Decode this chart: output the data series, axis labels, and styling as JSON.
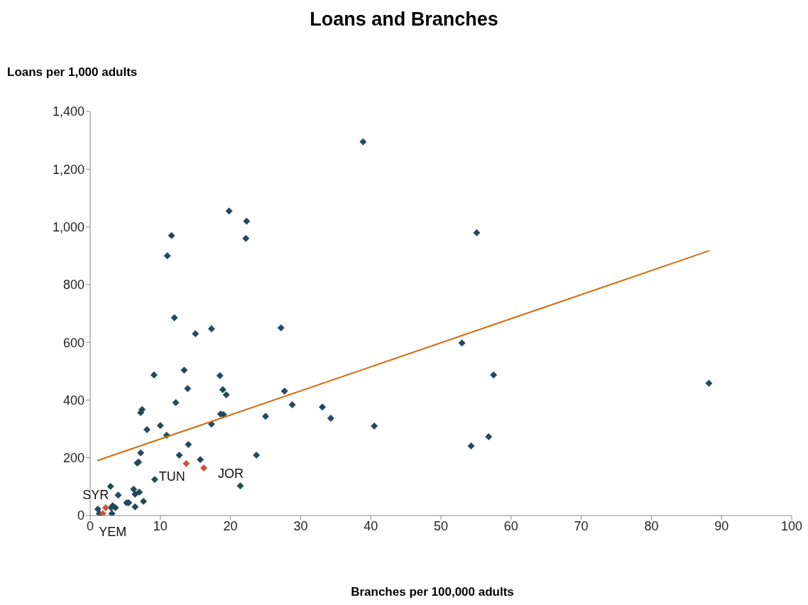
{
  "chart_data": {
    "type": "scatter",
    "title": "Loans and Branches",
    "xlabel": "Branches per 100,000 adults",
    "ylabel": "Loans per 1,000 adults",
    "xlim": [
      0,
      100
    ],
    "xticks": [
      0,
      10,
      20,
      30,
      40,
      50,
      60,
      70,
      80,
      90,
      100
    ],
    "ylim": [
      0,
      1400
    ],
    "yticks": [
      0,
      200,
      400,
      600,
      800,
      {
        "value": 1000,
        "label": "1,000"
      },
      {
        "value": 1200,
        "label": "1,200"
      },
      {
        "value": 1400,
        "label": "1,400"
      }
    ],
    "grid": false,
    "legend": false,
    "marker": "diamond",
    "series": [
      {
        "color": "#234a5a",
        "x": [
          38.9,
          19.8,
          22.3,
          22.2,
          11.6,
          11.0,
          55.1,
          12.0,
          15.0,
          17.3,
          27.2,
          53.0,
          9.1,
          57.5,
          13.4,
          18.5,
          13.9,
          18.9,
          19.4,
          12.2,
          18.6,
          19.0,
          17.3,
          25.0,
          27.7,
          28.8,
          33.1,
          34.3,
          40.5,
          14.0,
          12.7,
          15.7,
          23.7,
          21.4,
          7.4,
          7.2,
          8.1,
          10.0,
          10.9,
          7.2,
          6.7,
          6.9,
          9.2,
          2.9,
          4.0,
          6.2,
          6.4,
          7.0,
          7.6,
          5.2,
          5.5,
          6.4,
          3.2,
          3.6,
          3.0,
          3.1,
          1.1,
          1.3,
          54.3,
          56.8,
          88.2
        ],
        "values": [
          1295,
          1055,
          1020,
          960,
          970,
          900,
          980,
          685,
          630,
          647,
          650,
          598,
          487,
          487,
          504,
          485,
          440,
          436,
          418,
          391,
          352,
          350,
          317,
          344,
          431,
          384,
          376,
          337,
          310,
          246,
          209,
          194,
          209,
          103,
          367,
          357,
          298,
          312,
          278,
          217,
          182,
          185,
          125,
          101,
          71,
          91,
          74,
          81,
          49,
          44,
          44,
          30,
          34,
          27,
          27,
          7,
          22,
          7,
          241,
          273,
          458
        ]
      },
      {
        "color": "#c8553d",
        "x": [
          2.2,
          1.8,
          13.7,
          16.2
        ],
        "values": [
          27,
          7,
          180,
          165
        ]
      },
      {
        "type": "line",
        "color": "#d46a0b",
        "marker": "none",
        "x": [
          1.0,
          88.3
        ],
        "values": [
          190,
          918
        ]
      }
    ],
    "annotations": [
      {
        "text": "SYR",
        "x": 2.2,
        "y": 27
      },
      {
        "text": "YEM",
        "x": 1.8,
        "y": 7
      },
      {
        "text": "TUN",
        "x": 13.7,
        "y": 180
      },
      {
        "text": "JOR",
        "x": 16.2,
        "y": 165
      }
    ]
  }
}
